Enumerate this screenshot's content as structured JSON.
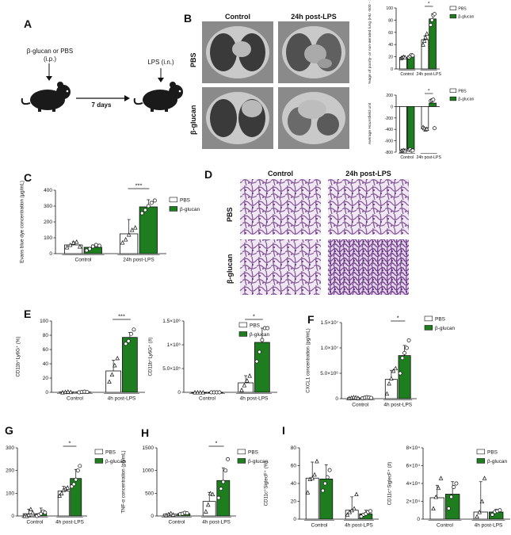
{
  "panels": {
    "A": {
      "letter": "A",
      "treatment_line1": "β-glucan or PBS",
      "treatment_line2": "(i.p.)",
      "interval": "7 days",
      "challenge": "LPS (i.n.)"
    },
    "B": {
      "letter": "B",
      "col_control": "Control",
      "col_lps": "24h post-LPS",
      "row_pbs": "PBS",
      "row_bglucan": "β-glucan"
    },
    "C": {
      "letter": "C"
    },
    "D": {
      "letter": "D",
      "col_control": "Control",
      "col_lps": "24h post-LPS",
      "row_pbs": "PBS",
      "row_bglucan": "β-glucan"
    },
    "E": {
      "letter": "E"
    },
    "F": {
      "letter": "F"
    },
    "G": {
      "letter": "G"
    },
    "H": {
      "letter": "H"
    },
    "I": {
      "letter": "I"
    }
  },
  "colors": {
    "pbs_fill": "#ffffff",
    "bglucan_fill": "#1e7d1e",
    "axis": "#111111"
  },
  "chart_data": [
    {
      "id": "B1",
      "type": "bar",
      "categories": [
        "Control",
        "24h post-LPS"
      ],
      "ylabel": "%age of poorly- or non-aerated lung (HU -500 - 100)",
      "ylim": [
        0,
        100
      ],
      "yticks": [
        0,
        20,
        40,
        60,
        80,
        100
      ],
      "legend": [
        "PBS",
        "β-glucan"
      ],
      "series": [
        {
          "name": "PBS",
          "values": [
            19,
            48
          ],
          "err": [
            1,
            6
          ],
          "points": [
            [
              18,
              19,
              20,
              19
            ],
            [
              40,
              46,
              52,
              58
            ]
          ]
        },
        {
          "name": "β-glucan",
          "values": [
            21,
            82
          ],
          "err": [
            2,
            8
          ],
          "points": [
            [
              19,
              21,
              23,
              22
            ],
            [
              72,
              80,
              88,
              90
            ]
          ]
        }
      ],
      "significance": [
        {
          "group": 1,
          "label": "*"
        }
      ]
    },
    {
      "id": "B2",
      "type": "bar",
      "categories": [
        "Control",
        "24h post-LPS"
      ],
      "ylabel": "Average Hounsfield unit",
      "ylim": [
        -800,
        200
      ],
      "yticks": [
        -800,
        -600,
        -400,
        -200,
        0,
        200
      ],
      "legend": [
        "PBS",
        "β-glucan"
      ],
      "series": [
        {
          "name": "PBS",
          "values": [
            -770,
            -380
          ],
          "err": [
            10,
            30
          ],
          "points": [
            [
              -775,
              -770,
              -765,
              -770
            ],
            [
              -360,
              -380,
              -400,
              -390
            ]
          ]
        },
        {
          "name": "β-glucan",
          "values": [
            -760,
            60
          ],
          "err": [
            15,
            60
          ],
          "points": [
            [
              -760,
              -750,
              -775,
              -770
            ],
            [
              100,
              110,
              120,
              -380
            ]
          ]
        }
      ],
      "significance": [
        {
          "group": 1,
          "label": "*"
        }
      ]
    },
    {
      "id": "C",
      "type": "bar",
      "categories": [
        "Control",
        "24h post-LPS"
      ],
      "ylabel": "Evans blue dye concentration (µg/mL)",
      "ylim": [
        0,
        400
      ],
      "yticks": [
        0,
        100,
        200,
        300,
        400
      ],
      "legend": [
        "PBS",
        "β-glucan"
      ],
      "series": [
        {
          "name": "PBS",
          "values": [
            55,
            125
          ],
          "err": [
            20,
            90
          ],
          "points": [
            [
              40,
              55,
              70,
              75,
              45
            ],
            [
              70,
              90,
              120,
              150,
              165
            ]
          ]
        },
        {
          "name": "β-glucan",
          "values": [
            40,
            295
          ],
          "err": [
            15,
            45
          ],
          "points": [
            [
              20,
              30,
              45,
              55,
              50
            ],
            [
              255,
              275,
              300,
              320,
              335
            ]
          ]
        }
      ],
      "significance": [
        {
          "group": 1,
          "label": "***"
        }
      ]
    },
    {
      "id": "E1",
      "type": "bar",
      "categories": [
        "Control",
        "4h post-LPS"
      ],
      "ylabel": "CD11b⁺Ly6G⁺ (%)",
      "ylim": [
        0,
        100
      ],
      "yticks": [
        0,
        20,
        40,
        60,
        80,
        100
      ],
      "legend": [],
      "series": [
        {
          "name": "PBS",
          "values": [
            0.5,
            30
          ],
          "err": [
            0.5,
            15
          ],
          "points": [
            [
              0,
              0.5,
              1,
              0.5
            ],
            [
              15,
              25,
              38,
              48
            ]
          ]
        },
        {
          "name": "β-glucan",
          "values": [
            0.5,
            77
          ],
          "err": [
            0.5,
            7
          ],
          "points": [
            [
              0,
              0.5,
              1,
              0.5
            ],
            [
              68,
              72,
              82,
              88
            ]
          ]
        }
      ],
      "significance": [
        {
          "group": 1,
          "label": "***"
        }
      ]
    },
    {
      "id": "E2",
      "type": "bar",
      "categories": [
        "Control",
        "4h post-LPS"
      ],
      "ylabel": "CD11b⁺Ly6G⁺ (#)",
      "ylim": [
        0,
        1500000
      ],
      "ytick_labels": [
        "0",
        "5.0×10⁵",
        "1×10⁶",
        "1.5×10⁶"
      ],
      "legend": [
        "PBS",
        "β-glucan"
      ],
      "series": [
        {
          "name": "PBS",
          "values": [
            0,
            200000
          ],
          "err": [
            0,
            150000
          ],
          "points": [
            [
              0,
              0,
              0,
              0
            ],
            [
              50000,
              150000,
              250000,
              350000
            ]
          ]
        },
        {
          "name": "β-glucan",
          "values": [
            0,
            1050000
          ],
          "err": [
            0,
            300000
          ],
          "points": [
            [
              0,
              0,
              0,
              0
            ],
            [
              650000,
              850000,
              1100000,
              1350000,
              1350000
            ]
          ]
        }
      ],
      "significance": [
        {
          "group": 1,
          "label": "*"
        }
      ]
    },
    {
      "id": "F",
      "type": "bar",
      "categories": [
        "Control",
        "4h post-LPS"
      ],
      "ylabel": "CXCL1 concentration (pg/mL)",
      "ylim": [
        0,
        15000000
      ],
      "ytick_labels": [
        "0",
        "5.0×10⁶",
        "1.0×10⁷",
        "1.5×10⁷"
      ],
      "legend": [
        "PBS",
        "β-glucan"
      ],
      "series": [
        {
          "name": "PBS",
          "values": [
            200000,
            3800000
          ],
          "err": [
            100000,
            1800000
          ],
          "points": [
            [
              100000,
              200000,
              300000,
              250000,
              150000
            ],
            [
              1000000,
              3000000,
              4000000,
              5500000,
              6000000
            ]
          ]
        },
        {
          "name": "β-glucan",
          "values": [
            200000,
            8500000
          ],
          "err": [
            100000,
            2000000
          ],
          "points": [
            [
              100000,
              200000,
              300000,
              250000,
              150000
            ],
            [
              5000000,
              8000000,
              9000000,
              10000000,
              11500000
            ]
          ]
        }
      ],
      "significance": [
        {
          "group": 1,
          "label": "*"
        }
      ]
    },
    {
      "id": "G",
      "type": "bar",
      "categories": [
        "Control",
        "4h post-LPS"
      ],
      "ylabel": "IL-6 concentration (pg/mL)",
      "ylim": [
        0,
        300
      ],
      "yticks": [
        0,
        100,
        200,
        300
      ],
      "legend": [
        "PBS",
        "β-glucan"
      ],
      "series": [
        {
          "name": "PBS",
          "values": [
            10,
            110
          ],
          "err": [
            20,
            20
          ],
          "points": [
            [
              0,
              0,
              5,
              30,
              15
            ],
            [
              90,
              100,
              115,
              120,
              125
            ]
          ]
        },
        {
          "name": "β-glucan",
          "values": [
            10,
            165
          ],
          "err": [
            25,
            40
          ],
          "points": [
            [
              0,
              5,
              10,
              20,
              15
            ],
            [
              130,
              140,
              160,
              200,
              220
            ]
          ]
        }
      ],
      "significance": [
        {
          "group": 1,
          "label": "*"
        }
      ]
    },
    {
      "id": "H",
      "type": "bar",
      "categories": [
        "Control",
        "4h post-LPS"
      ],
      "ylabel": "TNF-α concentration (pg/mL)",
      "ylim": [
        0,
        1500
      ],
      "yticks": [
        0,
        500,
        1000,
        1500
      ],
      "legend": [
        "PBS",
        "β-glucan"
      ],
      "series": [
        {
          "name": "PBS",
          "values": [
            40,
            320
          ],
          "err": [
            20,
            200
          ],
          "points": [
            [
              20,
              40,
              60,
              30
            ],
            [
              100,
              250,
              500,
              480
            ]
          ]
        },
        {
          "name": "β-glucan",
          "values": [
            50,
            780
          ],
          "err": [
            20,
            280
          ],
          "points": [
            [
              40,
              50,
              70,
              60
            ],
            [
              400,
              600,
              750,
              1000,
              1250
            ]
          ]
        }
      ],
      "significance": [
        {
          "group": 1,
          "label": "*"
        }
      ]
    },
    {
      "id": "I1",
      "type": "bar",
      "categories": [
        "Control",
        "4h post-LPS"
      ],
      "ylabel": "CD11c⁺SiglecF⁺ (%)",
      "ylim": [
        0,
        80
      ],
      "yticks": [
        0,
        20,
        40,
        60,
        80
      ],
      "legend": [],
      "series": [
        {
          "name": "PBS",
          "values": [
            46,
            10
          ],
          "err": [
            18,
            15
          ],
          "points": [
            [
              30,
              45,
              46,
              50,
              65
            ],
            [
              5,
              8,
              10,
              12,
              28
            ]
          ]
        },
        {
          "name": "β-glucan",
          "values": [
            45,
            6
          ],
          "err": [
            16,
            4
          ],
          "points": [
            [
              32,
              40,
              47,
              55
            ],
            [
              3,
              5,
              6,
              8,
              9
            ]
          ]
        }
      ]
    },
    {
      "id": "I2",
      "type": "bar",
      "categories": [
        "Control",
        "4h post-LPS"
      ],
      "ylabel": "CD11c⁺SiglecF⁺ (#)",
      "ylim": [
        0,
        80000
      ],
      "ytick_labels": [
        "0",
        "2×10⁴",
        "4×10⁴",
        "6×10⁴",
        "8×10⁴"
      ],
      "legend": [
        "PBS",
        "β-glucan"
      ],
      "series": [
        {
          "name": "PBS",
          "values": [
            24000,
            8000
          ],
          "err": [
            14000,
            34000
          ],
          "points": [
            [
              12000,
              25000,
              35000,
              46000
            ],
            [
              3000,
              8000,
              20000,
              46000
            ]
          ]
        },
        {
          "name": "β-glucan",
          "values": [
            28000,
            8000
          ],
          "err": [
            14000,
            3000
          ],
          "points": [
            [
              12000,
              25000,
              36000,
              40000
            ],
            [
              5000,
              8000,
              9000,
              10000
            ]
          ]
        }
      ]
    }
  ]
}
